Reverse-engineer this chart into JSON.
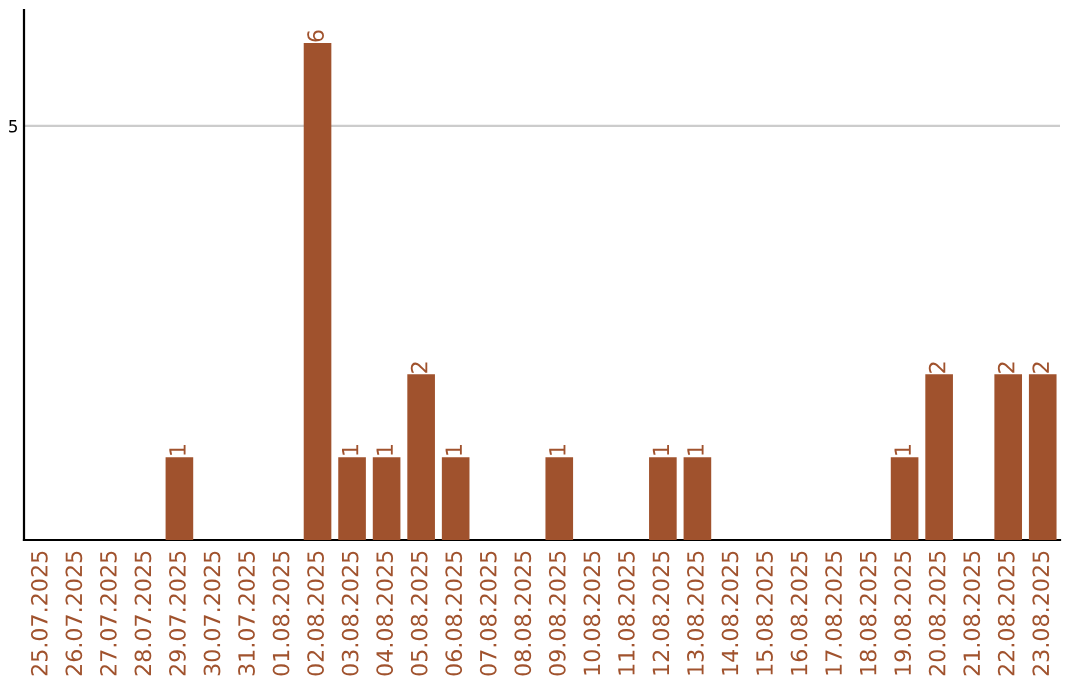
{
  "chart_data": {
    "type": "bar",
    "categories": [
      "25.07.2025",
      "26.07.2025",
      "27.07.2025",
      "28.07.2025",
      "29.07.2025",
      "30.07.2025",
      "31.07.2025",
      "01.08.2025",
      "02.08.2025",
      "03.08.2025",
      "04.08.2025",
      "05.08.2025",
      "06.08.2025",
      "07.08.2025",
      "08.08.2025",
      "09.08.2025",
      "10.08.2025",
      "11.08.2025",
      "12.08.2025",
      "13.08.2025",
      "14.08.2025",
      "15.08.2025",
      "16.08.2025",
      "17.08.2025",
      "18.08.2025",
      "19.08.2025",
      "20.08.2025",
      "21.08.2025",
      "22.08.2025",
      "23.08.2025"
    ],
    "values": [
      0,
      0,
      0,
      0,
      1,
      0,
      0,
      0,
      6,
      1,
      1,
      2,
      1,
      0,
      0,
      1,
      0,
      0,
      1,
      1,
      0,
      0,
      0,
      0,
      0,
      1,
      2,
      0,
      2,
      2
    ],
    "value_labels": [
      null,
      null,
      null,
      null,
      "1",
      null,
      null,
      null,
      "6",
      "1",
      "1",
      "2",
      "1",
      null,
      null,
      "1",
      null,
      null,
      "1",
      "1",
      null,
      null,
      null,
      null,
      null,
      "1",
      "2",
      null,
      "2",
      "2"
    ],
    "color": "#a0522d",
    "ylim": [
      0,
      6.4
    ],
    "yticks": [
      5
    ],
    "grid": "y"
  }
}
